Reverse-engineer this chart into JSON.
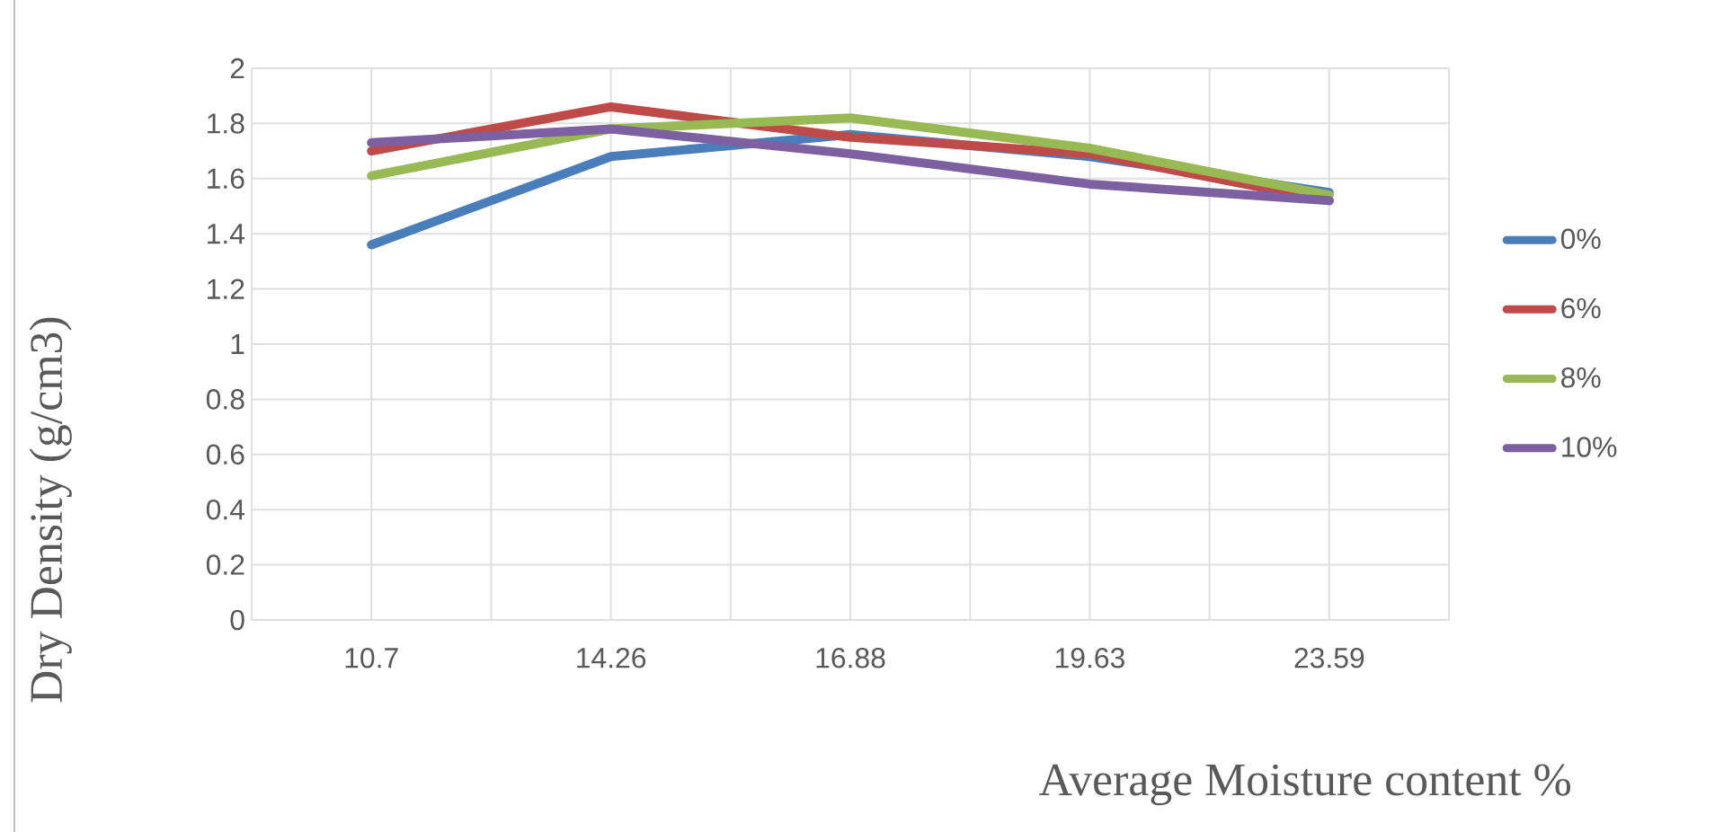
{
  "chart_data": {
    "type": "line",
    "xlabel": "Average Moisture content %",
    "ylabel": "Dry Density (g/cm3)",
    "categories": [
      "10.7",
      "14.26",
      "16.88",
      "19.63",
      "23.59"
    ],
    "series": [
      {
        "name": "0%",
        "color": "#4a7ebb",
        "values": [
          1.36,
          1.68,
          1.76,
          1.68,
          1.55
        ]
      },
      {
        "name": "6%",
        "color": "#be4b48",
        "values": [
          1.7,
          1.86,
          1.75,
          1.69,
          1.52
        ]
      },
      {
        "name": "8%",
        "color": "#98b954",
        "values": [
          1.61,
          1.78,
          1.82,
          1.71,
          1.54
        ]
      },
      {
        "name": "10%",
        "color": "#7d60a0",
        "values": [
          1.73,
          1.78,
          1.69,
          1.58,
          1.52
        ]
      }
    ],
    "ylim": [
      0,
      2
    ],
    "yticks": [
      0,
      0.2,
      0.4,
      0.6,
      0.8,
      1,
      1.2,
      1.4,
      1.6,
      1.8,
      2
    ],
    "grid": true,
    "legend": "right",
    "marker": "none",
    "line_style": "solid"
  }
}
